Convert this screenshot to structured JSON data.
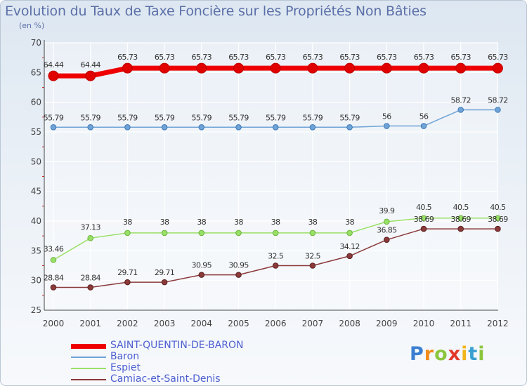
{
  "chart_data": {
    "type": "line",
    "title": "Evolution du Taux de Taxe Foncière sur les Propriétés Non Bâties",
    "ylabel": "(en %)",
    "xlabel": "",
    "ylim": [
      25,
      70
    ],
    "yticks": [
      "25",
      "30",
      "35",
      "40",
      "45",
      "50",
      "55",
      "60",
      "65",
      "70"
    ],
    "categories": [
      "2000",
      "2001",
      "2002",
      "2003",
      "2004",
      "2005",
      "2006",
      "2007",
      "2008",
      "2009",
      "2010",
      "2011",
      "2012"
    ],
    "series": [
      {
        "name": "SAINT-QUENTIN-DE-BARON",
        "color": "#ee0000",
        "values": [
          64.44,
          64.44,
          65.73,
          65.73,
          65.73,
          65.73,
          65.73,
          65.73,
          65.73,
          65.73,
          65.73,
          65.73,
          65.73
        ],
        "labels": [
          "64.44",
          "64.44",
          "65.73",
          "65.73",
          "65.73",
          "65.73",
          "65.73",
          "65.73",
          "65.73",
          "65.73",
          "65.73",
          "65.73",
          "65.73"
        ]
      },
      {
        "name": "Baron",
        "color": "#6fa3d6",
        "values": [
          55.79,
          55.79,
          55.79,
          55.79,
          55.79,
          55.79,
          55.79,
          55.79,
          55.79,
          56,
          56,
          58.72,
          58.72
        ],
        "labels": [
          "55.79",
          "55.79",
          "55.79",
          "55.79",
          "55.79",
          "55.79",
          "55.79",
          "55.79",
          "55.79",
          "56",
          "56",
          "58.72",
          "58.72"
        ]
      },
      {
        "name": "Espiet",
        "color": "#99e066",
        "values": [
          33.46,
          37.13,
          38,
          38,
          38,
          38,
          38,
          38,
          38,
          39.9,
          40.5,
          40.5,
          40.5
        ],
        "labels": [
          "33.46",
          "37.13",
          "38",
          "38",
          "38",
          "38",
          "38",
          "38",
          "38",
          "39.9",
          "40.5",
          "40.5",
          "40.5"
        ]
      },
      {
        "name": "Camiac-et-Saint-Denis",
        "color": "#8b3a3a",
        "values": [
          28.84,
          28.84,
          29.71,
          29.71,
          30.95,
          30.95,
          32.5,
          32.5,
          34.12,
          36.85,
          38.69,
          38.69,
          38.69
        ],
        "labels": [
          "28.84",
          "28.84",
          "29.71",
          "29.71",
          "30.95",
          "30.95",
          "32.5",
          "32.5",
          "34.12",
          "36.85",
          "38.69",
          "38.69",
          "38.69"
        ]
      }
    ],
    "legend_position": "bottom-left",
    "grid": true
  },
  "logo": {
    "letters": [
      "P",
      "r",
      "o",
      "x",
      "i",
      "t",
      "i"
    ],
    "colors": [
      "#3b7fd1",
      "#f28c1c",
      "#8cc63f",
      "#e23a2a",
      "#f2b51c",
      "#3b9fd1",
      "#8cc63f"
    ]
  }
}
